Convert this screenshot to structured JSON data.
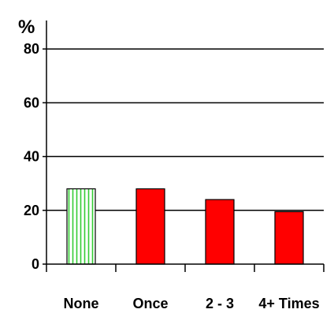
{
  "chart_data": {
    "type": "bar",
    "title": "",
    "xlabel": "",
    "ylabel": "%",
    "categories": [
      "None",
      "Once",
      "2 - 3",
      "4+ Times"
    ],
    "values": [
      28,
      28,
      24,
      19.5
    ],
    "ylim": [
      0,
      90
    ],
    "yticks": [
      0,
      20,
      40,
      60,
      80
    ],
    "ytick_labels": [
      "0",
      "20",
      "40",
      "60",
      "80"
    ],
    "grid": true,
    "bar_styles": [
      "striped",
      "solid",
      "solid",
      "solid"
    ],
    "colors": {
      "striped_fill": "#ffffff",
      "striped_line": "#33cc33",
      "solid_fill": "#ff0000",
      "outline": "#000000",
      "grid": "#000000"
    }
  }
}
